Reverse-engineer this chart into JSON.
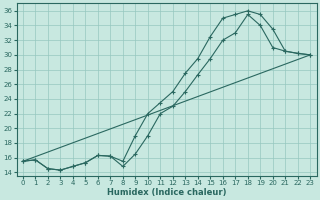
{
  "xlabel": "Humidex (Indice chaleur)",
  "xlim": [
    -0.5,
    23.5
  ],
  "ylim": [
    13.5,
    37
  ],
  "xticks": [
    0,
    1,
    2,
    3,
    4,
    5,
    6,
    7,
    8,
    9,
    10,
    11,
    12,
    13,
    14,
    15,
    16,
    17,
    18,
    19,
    20,
    21,
    22,
    23
  ],
  "yticks": [
    14,
    16,
    18,
    20,
    22,
    24,
    26,
    28,
    30,
    32,
    34,
    36
  ],
  "bg_color": "#c8e8e0",
  "grid_color": "#96c8c0",
  "line_color": "#2a6860",
  "curve1_x": [
    0,
    1,
    2,
    3,
    4,
    5,
    6,
    7,
    8,
    9,
    10,
    11,
    12,
    13,
    14,
    15,
    16,
    17,
    18,
    19,
    20,
    21,
    22,
    23
  ],
  "curve1_y": [
    15.5,
    15.7,
    14.5,
    14.3,
    14.8,
    15.3,
    16.3,
    16.2,
    14.8,
    16.5,
    19.0,
    22.0,
    23.0,
    25.0,
    27.3,
    29.5,
    32.0,
    33.0,
    35.5,
    34.0,
    31.0,
    30.5,
    30.2,
    30.0
  ],
  "curve2_x": [
    0,
    1,
    2,
    3,
    4,
    5,
    6,
    7,
    8,
    9,
    10,
    11,
    12,
    13,
    14,
    15,
    16,
    17,
    18,
    19,
    20,
    21,
    22,
    23
  ],
  "curve2_y": [
    15.5,
    15.7,
    14.5,
    14.3,
    14.8,
    15.3,
    16.3,
    16.2,
    15.5,
    19.0,
    22.0,
    23.5,
    25.0,
    27.5,
    29.5,
    32.5,
    35.0,
    35.5,
    36.0,
    35.5,
    33.5,
    30.5,
    30.2,
    30.0
  ],
  "curve3_x": [
    0,
    23
  ],
  "curve3_y": [
    15.5,
    30.0
  ]
}
